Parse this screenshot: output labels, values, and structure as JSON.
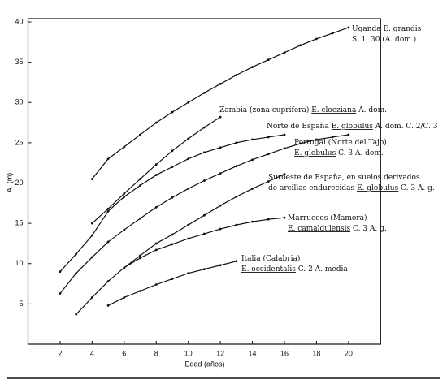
{
  "chart_data": {
    "type": "line",
    "x_label": "Edad (años)",
    "y_label": "A. (m)",
    "x": [
      2,
      3,
      4,
      5,
      6,
      7,
      8,
      9,
      10,
      11,
      12,
      13,
      14,
      15,
      16,
      17,
      18,
      19,
      20
    ],
    "xlim": [
      0,
      22
    ],
    "ylim": [
      0,
      40
    ],
    "xticks": [
      2,
      4,
      6,
      8,
      10,
      12,
      14,
      16,
      18,
      20
    ],
    "yticks": [
      5,
      10,
      15,
      20,
      25,
      30,
      35,
      40
    ],
    "series": [
      {
        "color": "#111111",
        "annotation": [
          [
            {
              "text": "Uganda "
            },
            {
              "text": "E. grandis",
              "underline": true
            }
          ],
          [
            {
              "text": "S. 1, 30 (A. dom.)"
            }
          ]
        ],
        "values": [
          null,
          null,
          20.5,
          23,
          24.5,
          26,
          27.5,
          28.8,
          30,
          31.2,
          32.3,
          33.4,
          34.4,
          35.3,
          36.2,
          37.1,
          37.9,
          38.6,
          39.3
        ]
      },
      {
        "color": "#111111",
        "annotation": [
          [
            {
              "text": "Zambia (zona cuprífera) "
            },
            {
              "text": "E. cloeziana",
              "underline": true
            },
            {
              "text": " A. dom."
            }
          ]
        ],
        "values": [
          null,
          null,
          15,
          16.8,
          18.7,
          20.5,
          22.3,
          24,
          25.5,
          26.9,
          28.2,
          null,
          null,
          null,
          null,
          null,
          null,
          null,
          null
        ]
      },
      {
        "color": "#111111",
        "annotation": [
          [
            {
              "text": "Norte de España "
            },
            {
              "text": "E. globulus",
              "underline": true
            },
            {
              "text": " A. dom. C. 2/C. 3"
            }
          ]
        ],
        "values": [
          9,
          11.2,
          13.5,
          16.5,
          18.3,
          19.7,
          21,
          22,
          23,
          23.8,
          24.4,
          25,
          25.4,
          25.7,
          26,
          null,
          null,
          null,
          null
        ]
      },
      {
        "color": "#111111",
        "annotation": [
          [
            {
              "text": "Portugal (Norte del Tajo)"
            }
          ],
          [
            {
              "text": "E. globulus",
              "underline": true
            },
            {
              "text": " C. 3 A. dom."
            }
          ]
        ],
        "values": [
          6.3,
          8.8,
          10.8,
          12.7,
          14.2,
          15.6,
          17,
          18.2,
          19.3,
          20.3,
          21.2,
          22.1,
          22.9,
          23.6,
          24.3,
          24.9,
          25.4,
          25.7,
          26
        ]
      },
      {
        "color": "#111111",
        "annotation": [
          [
            {
              "text": "Suroeste de España, en suelos derivados"
            }
          ],
          [
            {
              "text": "de arcillas endurecidas "
            },
            {
              "text": "E. globulus",
              "underline": true
            },
            {
              "text": " C. 3 A. g."
            }
          ]
        ],
        "values": [
          null,
          3.7,
          5.8,
          7.8,
          9.5,
          11,
          12.5,
          13.6,
          14.8,
          16,
          17.2,
          18.3,
          19.3,
          20.2,
          21.1,
          null,
          null,
          null,
          null
        ]
      },
      {
        "color": "#111111",
        "annotation": [
          [
            {
              "text": "Marruecos (Mamora)"
            }
          ],
          [
            {
              "text": "E. camaldulensis",
              "underline": true
            },
            {
              "text": " C. 3 A. g."
            }
          ]
        ],
        "values": [
          null,
          null,
          null,
          null,
          9.5,
          10.7,
          11.7,
          12.4,
          13.1,
          13.7,
          14.3,
          14.8,
          15.2,
          15.5,
          15.7,
          null,
          null,
          null,
          null
        ]
      },
      {
        "color": "#111111",
        "annotation": [
          [
            {
              "text": "Italia (Calabria)"
            }
          ],
          [
            {
              "text": "E. occidentalis",
              "underline": true
            },
            {
              "text": " C. 2 A. media"
            }
          ]
        ],
        "values": [
          null,
          null,
          null,
          4.8,
          5.8,
          6.6,
          7.4,
          8.1,
          8.8,
          9.3,
          9.8,
          10.3,
          null,
          null,
          null,
          null,
          null,
          null,
          null
        ]
      }
    ]
  }
}
